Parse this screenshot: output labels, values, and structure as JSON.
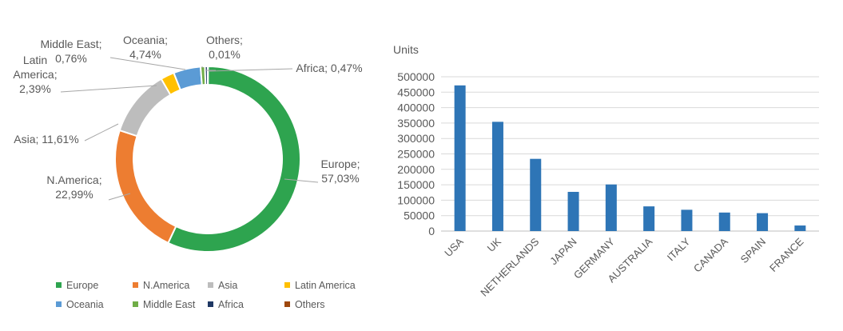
{
  "colors": {
    "Europe": "#2ea44f",
    "N.America": "#ed7d31",
    "Asia": "#bdbdbd",
    "Latin America": "#ffc000",
    "Oceania": "#5b9bd5",
    "Middle East": "#70ad47",
    "Africa": "#1f3864",
    "Others": "#9e480e",
    "bar": "#2e75b6",
    "grid": "#d9d9d9",
    "text": "#595959"
  },
  "chart_data": [
    {
      "type": "pie",
      "subtype": "donut",
      "slices": [
        {
          "name": "Europe",
          "value": 57.03,
          "label_lines": [
            "Europe;",
            "57,03%"
          ]
        },
        {
          "name": "N.America",
          "value": 22.99,
          "label_lines": [
            "N.America;",
            "22,99%"
          ]
        },
        {
          "name": "Asia",
          "value": 11.61,
          "label_lines": [
            "Asia; 11,61%"
          ]
        },
        {
          "name": "Latin America",
          "value": 2.39,
          "label_lines": [
            "Latin",
            "America;",
            "2,39%"
          ]
        },
        {
          "name": "Oceania",
          "value": 4.74,
          "label_lines": [
            "Oceania;",
            "4,74%"
          ]
        },
        {
          "name": "Middle East",
          "value": 0.76,
          "label_lines": [
            "Middle East;",
            "0,76%"
          ]
        },
        {
          "name": "Africa",
          "value": 0.47,
          "label_lines": [
            "Africa; 0,47%"
          ]
        },
        {
          "name": "Others",
          "value": 0.01,
          "label_lines": [
            "Others;",
            "0,01%"
          ]
        }
      ],
      "legend": [
        "Europe",
        "N.America",
        "Asia",
        "Latin America",
        "Oceania",
        "Middle East",
        "Africa",
        "Others"
      ],
      "legend_position": "bottom"
    },
    {
      "type": "bar",
      "ylabel": "Units",
      "categories": [
        "USA",
        "UK",
        "NETHERLANDS",
        "JAPAN",
        "GERMANY",
        "AUSTRALIA",
        "ITALY",
        "CANADA",
        "SPAIN",
        "FRANCE"
      ],
      "values": [
        472000,
        354000,
        234000,
        127000,
        151000,
        80000,
        69000,
        60000,
        58000,
        18000
      ],
      "ylim": [
        0,
        500000
      ],
      "yticks": [
        0,
        50000,
        100000,
        150000,
        200000,
        250000,
        300000,
        350000,
        400000,
        450000,
        500000
      ],
      "grid": true
    }
  ]
}
